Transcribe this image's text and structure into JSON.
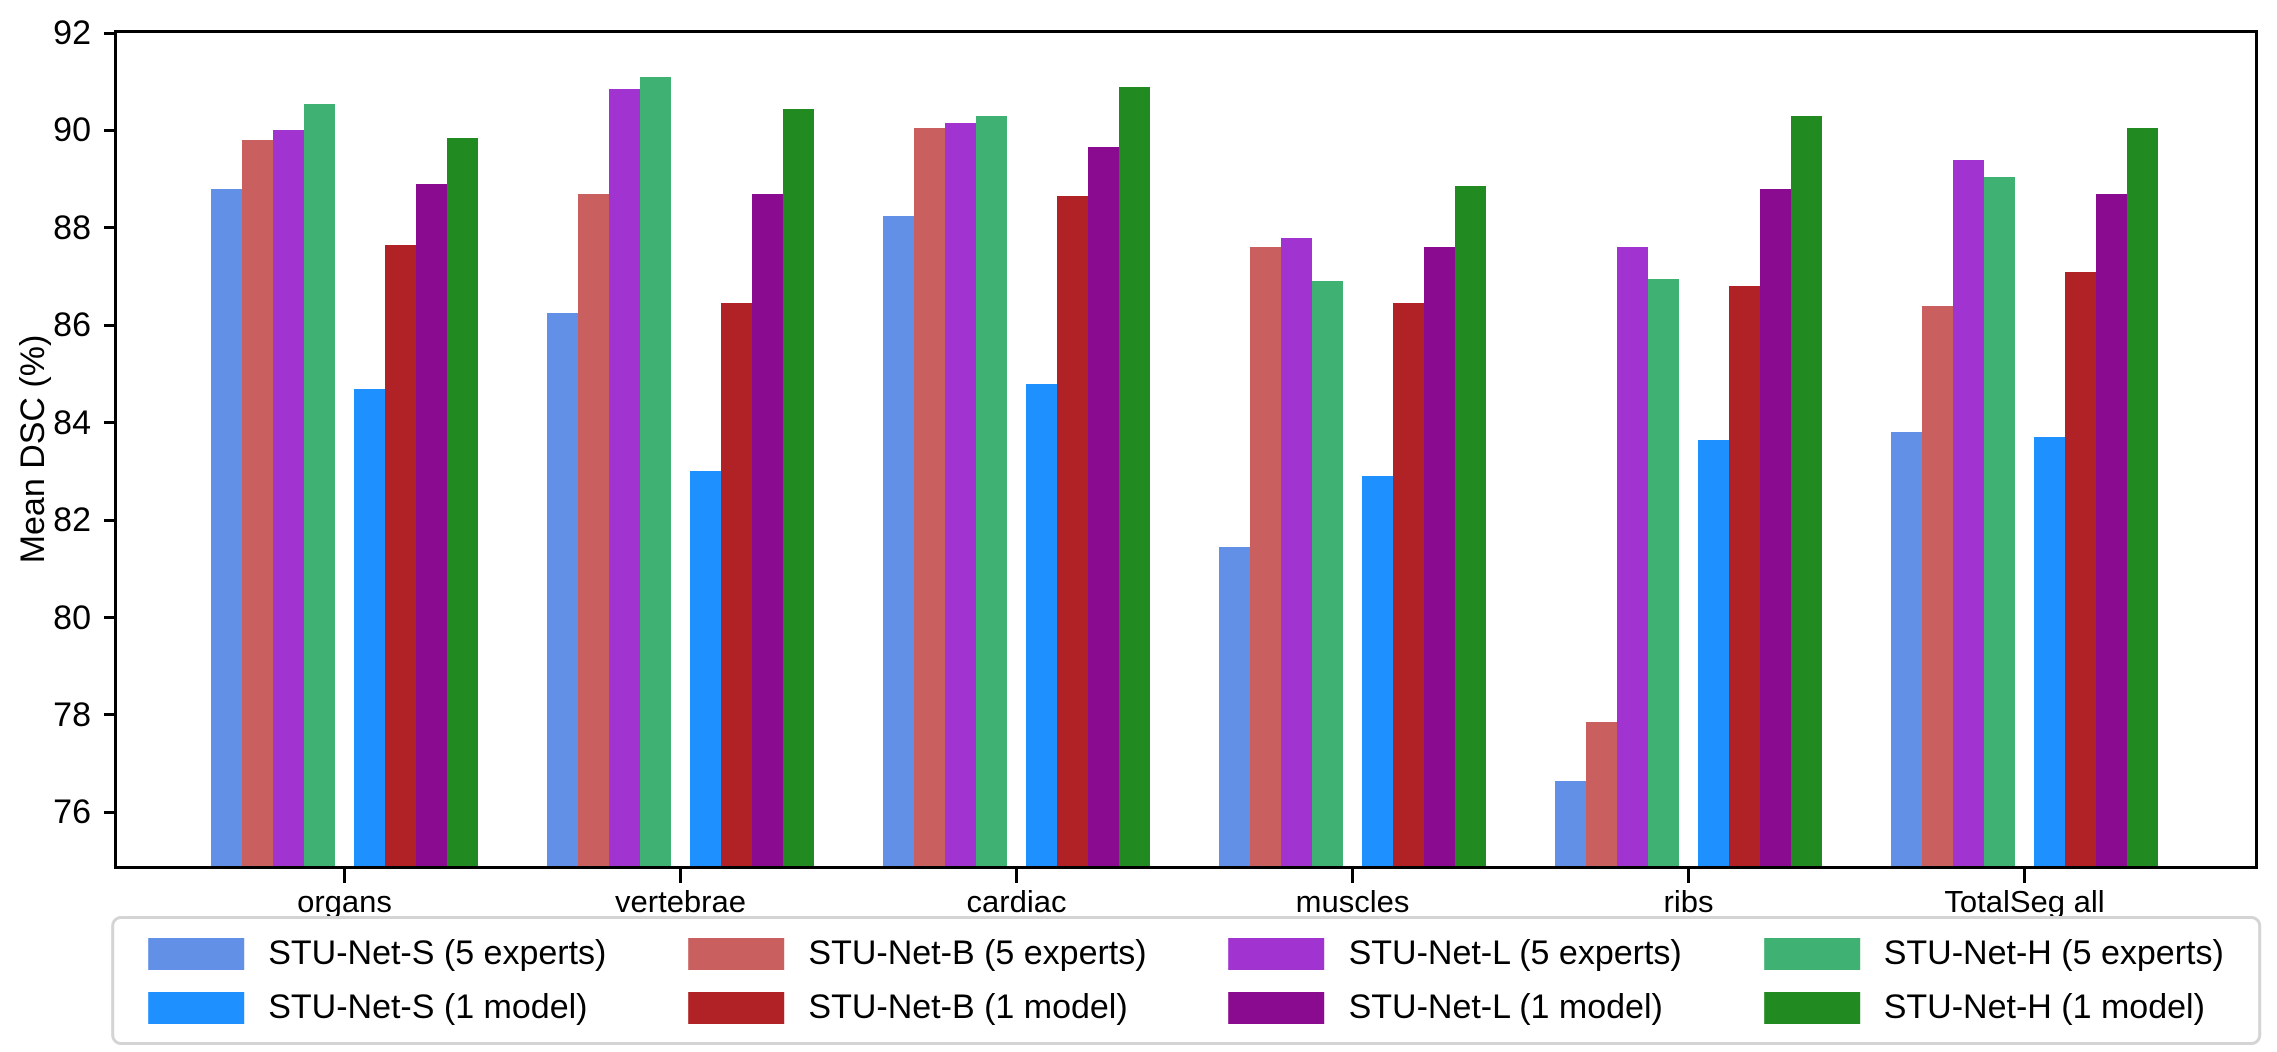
{
  "figure": {
    "background": "#ffffff",
    "axis_color": "#000000"
  },
  "chart_data": {
    "type": "bar",
    "title": "",
    "xlabel": "",
    "ylabel": "Mean DSC (%)",
    "ylim": [
      74.9,
      92
    ],
    "yticks": [
      76,
      78,
      80,
      82,
      84,
      86,
      88,
      90,
      92
    ],
    "grid": false,
    "legend_position": "bottom-center, 4 columns x 2 rows",
    "bar_grouping": "8 bars per category: cluster of four 5-experts bars, small gap, cluster of four 1-model bars",
    "categories": [
      "organs",
      "vertebrae",
      "cardiac",
      "muscles",
      "ribs",
      "TotalSeg all"
    ],
    "series": [
      {
        "name": "STU-Net-S (5 experts)",
        "color": "#6190E6",
        "values": [
          88.8,
          86.25,
          88.25,
          81.45,
          76.65,
          83.8
        ]
      },
      {
        "name": "STU-Net-B (5 experts)",
        "color": "#CA5F60",
        "values": [
          89.8,
          88.7,
          90.05,
          87.6,
          77.85,
          86.4
        ]
      },
      {
        "name": "STU-Net-L (5 experts)",
        "color": "#A134D1",
        "values": [
          90.0,
          90.85,
          90.15,
          87.8,
          87.6,
          89.4
        ]
      },
      {
        "name": "STU-Net-H (5 experts)",
        "color": "#3EB173",
        "values": [
          90.55,
          91.1,
          90.3,
          86.9,
          86.95,
          89.05
        ]
      },
      {
        "name": "STU-Net-S (1 model)",
        "color": "#1E90FF",
        "values": [
          84.7,
          83.0,
          84.8,
          82.9,
          83.65,
          83.7
        ]
      },
      {
        "name": "STU-Net-B (1 model)",
        "color": "#B02225",
        "values": [
          87.65,
          86.45,
          88.65,
          86.45,
          86.8,
          87.1
        ]
      },
      {
        "name": "STU-Net-L (1 model)",
        "color": "#8A0B90",
        "values": [
          88.9,
          88.7,
          89.65,
          87.6,
          88.8,
          88.7
        ]
      },
      {
        "name": "STU-Net-H (1 model)",
        "color": "#218B22",
        "values": [
          89.85,
          90.45,
          90.9,
          88.85,
          90.3,
          90.05
        ]
      }
    ]
  }
}
